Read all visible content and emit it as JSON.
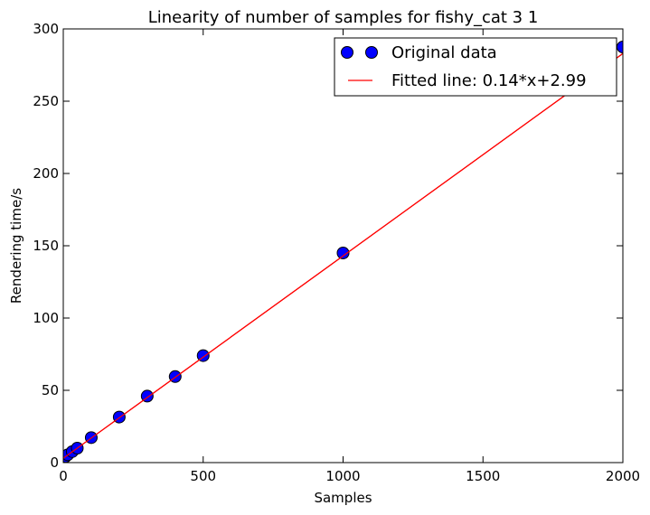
{
  "chart_data": {
    "type": "scatter",
    "title": "Linearity of number of samples for fishy_cat 3 1",
    "xlabel": "Samples",
    "ylabel": "Rendering time/s",
    "xlim": [
      0,
      2000
    ],
    "ylim": [
      0,
      300
    ],
    "xticks": [
      0,
      500,
      1000,
      1500,
      2000
    ],
    "yticks": [
      0,
      50,
      100,
      150,
      200,
      250,
      300
    ],
    "grid": false,
    "legend_position": "top-right",
    "series": [
      {
        "name": "Original data",
        "kind": "markers",
        "color": "#0000ff",
        "x": [
          1,
          2,
          4,
          8,
          16,
          32,
          50,
          100,
          200,
          300,
          400,
          500,
          1000,
          2000
        ],
        "y": [
          3.1,
          3.3,
          3.6,
          4.2,
          5.4,
          7.6,
          10.0,
          17.3,
          31.5,
          46.0,
          59.5,
          74.0,
          145.0,
          287.5
        ]
      },
      {
        "name": "Fitted line: 0.14*x+2.99",
        "kind": "line",
        "color": "#ff0000",
        "slope": 0.14,
        "intercept": 2.99,
        "x_range": [
          0,
          2000
        ]
      }
    ]
  }
}
